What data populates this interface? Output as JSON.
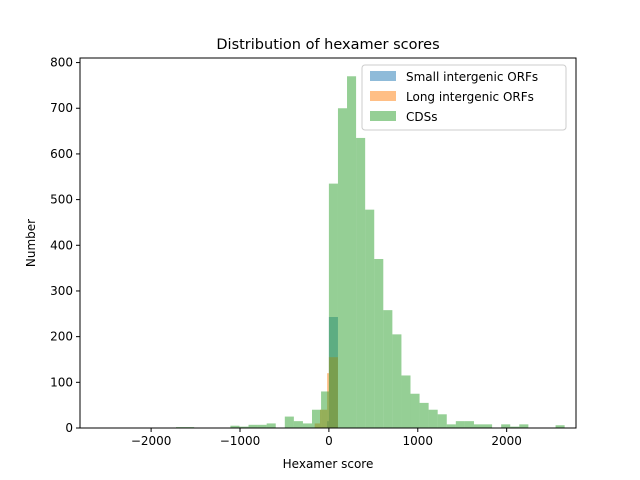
{
  "chart_data": {
    "type": "bar",
    "title": "Distribution of hexamer scores",
    "xlabel": "Hexamer score",
    "ylabel": "Number",
    "xlim": [
      -2800,
      2780
    ],
    "ylim": [
      0,
      810
    ],
    "xticks": [
      -2000,
      -1000,
      0,
      1000,
      2000
    ],
    "yticks": [
      0,
      100,
      200,
      300,
      400,
      500,
      600,
      700,
      800
    ],
    "legend_position": "top-right",
    "bin_width": 102,
    "series": [
      {
        "name": "Small intergenic ORFs",
        "color": "#1f77b4",
        "bins": [
          {
            "x0": -20,
            "x1": 0,
            "value": 15
          },
          {
            "x0": 0,
            "x1": 102,
            "value": 243
          }
        ]
      },
      {
        "name": "Long intergenic ORFs",
        "color": "#ff7f0e",
        "bins": [
          {
            "x0": -160,
            "x1": -100,
            "value": 10
          },
          {
            "x0": -100,
            "x1": -20,
            "value": 40
          },
          {
            "x0": -20,
            "x1": 0,
            "value": 120
          },
          {
            "x0": 0,
            "x1": 102,
            "value": 155
          }
        ]
      },
      {
        "name": "CDSs",
        "color": "#2ca02c",
        "bins": [
          {
            "x0": -1720,
            "x1": -1618,
            "value": 2
          },
          {
            "x0": -1618,
            "x1": -1516,
            "value": 2
          },
          {
            "x0": -1108,
            "x1": -1006,
            "value": 5
          },
          {
            "x0": -1006,
            "x1": -904,
            "value": 3
          },
          {
            "x0": -904,
            "x1": -802,
            "value": 7
          },
          {
            "x0": -802,
            "x1": -700,
            "value": 7
          },
          {
            "x0": -700,
            "x1": -598,
            "value": 10
          },
          {
            "x0": -496,
            "x1": -394,
            "value": 25
          },
          {
            "x0": -394,
            "x1": -292,
            "value": 15
          },
          {
            "x0": -292,
            "x1": -190,
            "value": 10
          },
          {
            "x0": -190,
            "x1": -88,
            "value": 40
          },
          {
            "x0": -88,
            "x1": 0,
            "value": 80
          },
          {
            "x0": 0,
            "x1": 102,
            "value": 535
          },
          {
            "x0": 102,
            "x1": 204,
            "value": 700
          },
          {
            "x0": 204,
            "x1": 306,
            "value": 770
          },
          {
            "x0": 306,
            "x1": 408,
            "value": 635
          },
          {
            "x0": 408,
            "x1": 510,
            "value": 478
          },
          {
            "x0": 510,
            "x1": 612,
            "value": 370
          },
          {
            "x0": 612,
            "x1": 714,
            "value": 258
          },
          {
            "x0": 714,
            "x1": 816,
            "value": 205
          },
          {
            "x0": 816,
            "x1": 918,
            "value": 115
          },
          {
            "x0": 918,
            "x1": 1020,
            "value": 75
          },
          {
            "x0": 1020,
            "x1": 1122,
            "value": 55
          },
          {
            "x0": 1122,
            "x1": 1224,
            "value": 40
          },
          {
            "x0": 1224,
            "x1": 1326,
            "value": 30
          },
          {
            "x0": 1326,
            "x1": 1428,
            "value": 8
          },
          {
            "x0": 1428,
            "x1": 1530,
            "value": 15
          },
          {
            "x0": 1530,
            "x1": 1632,
            "value": 15
          },
          {
            "x0": 1632,
            "x1": 1734,
            "value": 8
          },
          {
            "x0": 1734,
            "x1": 1836,
            "value": 8
          },
          {
            "x0": 1938,
            "x1": 2040,
            "value": 8
          },
          {
            "x0": 2040,
            "x1": 2142,
            "value": 3
          },
          {
            "x0": 2142,
            "x1": 2244,
            "value": 8
          },
          {
            "x0": 2550,
            "x1": 2652,
            "value": 6
          }
        ]
      }
    ]
  }
}
